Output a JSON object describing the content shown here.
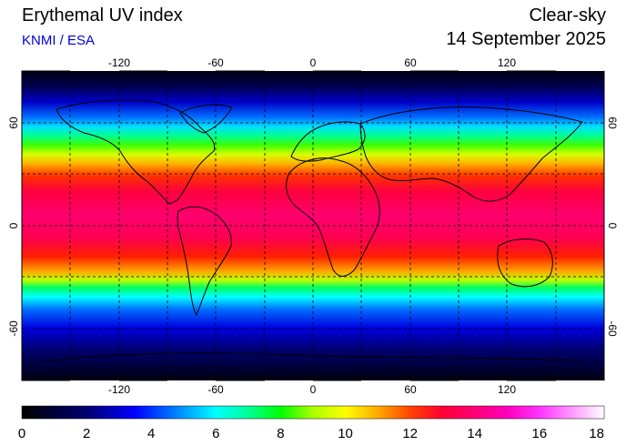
{
  "header": {
    "title": "Erythemal UV index",
    "subtitle": "KNMI / ESA",
    "mode": "Clear-sky",
    "date": "14 September 2025"
  },
  "map": {
    "lon_ticks": [
      "-120",
      "-60",
      "0",
      "60",
      "120"
    ],
    "lat_ticks": [
      "60",
      "0",
      "-60"
    ],
    "projection": "equirectangular",
    "grid": true
  },
  "colorbar": {
    "min": 0,
    "max": 18,
    "labels": [
      "0",
      "2",
      "4",
      "6",
      "8",
      "10",
      "12",
      "14",
      "16",
      "18"
    ],
    "stops": [
      {
        "value": 0,
        "color": "#000000"
      },
      {
        "value": 2,
        "color": "#000070"
      },
      {
        "value": 3.5,
        "color": "#0000ff"
      },
      {
        "value": 5,
        "color": "#0099ff"
      },
      {
        "value": 6,
        "color": "#00ffff"
      },
      {
        "value": 7,
        "color": "#00ff99"
      },
      {
        "value": 8,
        "color": "#00ff00"
      },
      {
        "value": 9,
        "color": "#aaff00"
      },
      {
        "value": 10,
        "color": "#ffff00"
      },
      {
        "value": 11,
        "color": "#ffaa00"
      },
      {
        "value": 12,
        "color": "#ff4400"
      },
      {
        "value": 13,
        "color": "#ff0033"
      },
      {
        "value": 14,
        "color": "#ff0077"
      },
      {
        "value": 15,
        "color": "#ff00bb"
      },
      {
        "value": 16,
        "color": "#ff33ff"
      },
      {
        "value": 17,
        "color": "#ff99ff"
      },
      {
        "value": 18,
        "color": "#ffffff"
      }
    ]
  }
}
